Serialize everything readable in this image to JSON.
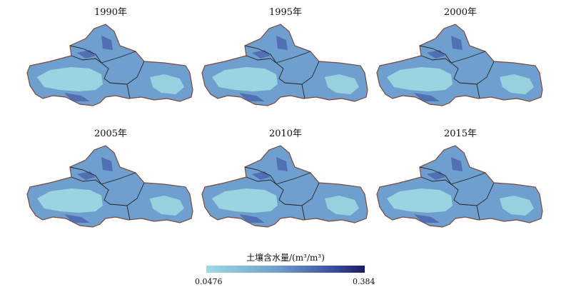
{
  "panels": [
    {
      "year": "1990年"
    },
    {
      "year": "1995年"
    },
    {
      "year": "2000年"
    },
    {
      "year": "2005年"
    },
    {
      "year": "2010年"
    },
    {
      "year": "2015年"
    }
  ],
  "legend": {
    "title": "土壤含水量/(m³/m³)",
    "min_label": "0.0476",
    "max_label": "0.384",
    "min_value": 0.0476,
    "max_value": 0.384,
    "colors": {
      "low": "#9fd9e3",
      "mid": "#6f9fce",
      "high": "#1f1a60"
    }
  }
}
